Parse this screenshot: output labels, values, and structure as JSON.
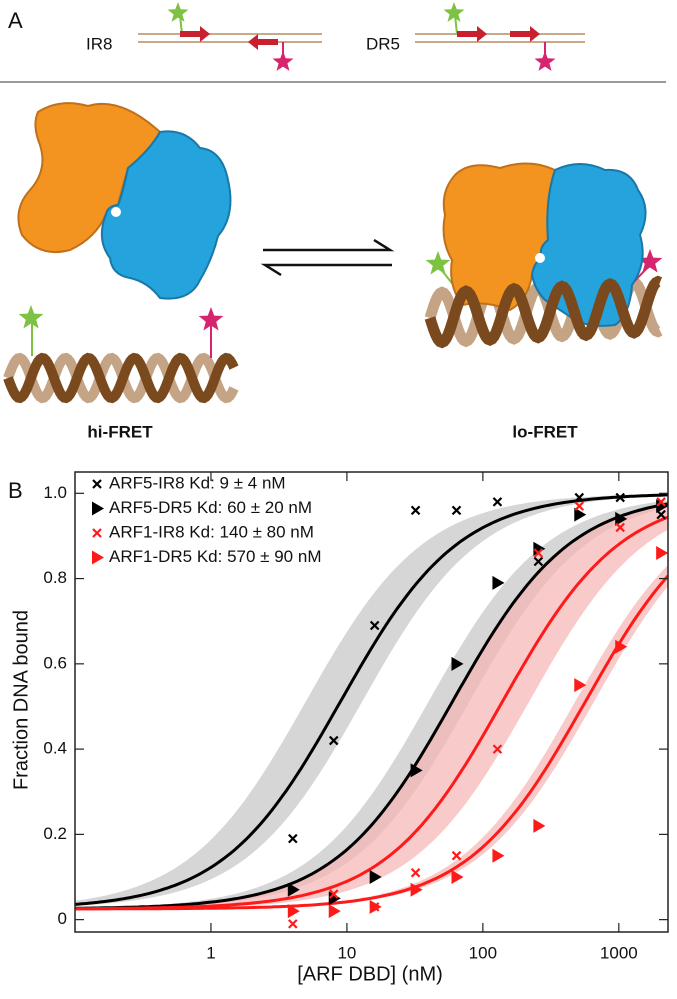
{
  "panel_a": {
    "label": "A",
    "constructs": [
      "IR8",
      "DR5"
    ],
    "states": [
      "hi-FRET",
      "lo-FRET"
    ]
  },
  "panel_b": {
    "label": "B"
  },
  "chart_data": {
    "type": "scatter",
    "xlabel": "[ARF DBD] (nM)",
    "ylabel": "Fraction DNA bound",
    "x": [
      4,
      8,
      16,
      32,
      64,
      128,
      256,
      512,
      1024,
      2048
    ],
    "xscale": "log",
    "xlim": [
      0.1,
      2300
    ],
    "xticks": [
      1,
      10,
      100,
      1000
    ],
    "ylim": [
      -0.029,
      1.05
    ],
    "yticks": [
      0,
      0.2,
      0.4,
      0.6,
      0.8,
      {
        "value": 1,
        "label": "1.0"
      }
    ],
    "legend": "upper left",
    "series": [
      {
        "name": "ARF5-IR8 Kd: 9 ± 4 nM",
        "color": "#000000",
        "marker": "x",
        "band_color": "#c4c4c4",
        "values": [
          0.19,
          0.42,
          0.69,
          0.96,
          0.96,
          0.98,
          0.84,
          0.99,
          0.99,
          0.95
        ],
        "fit": {
          "kd": 9,
          "kd_error": 4,
          "baseline": 0.025
        }
      },
      {
        "name": "ARF5-DR5 Kd: 60 ± 20 nM",
        "color": "#000000",
        "marker": "triangle",
        "band_color": "#c4c4c4",
        "values": [
          0.07,
          0.05,
          0.1,
          0.35,
          0.6,
          0.79,
          0.87,
          0.95,
          0.94,
          0.97
        ],
        "fit": {
          "kd": 60,
          "kd_error": 20,
          "baseline": 0.025
        }
      },
      {
        "name": "ARF1-IR8 Kd: 140 ± 80 nM",
        "color": "#ff1a1a",
        "marker": "x",
        "band_color": "#f6b3b3",
        "values": [
          -0.01,
          0.06,
          0.03,
          0.11,
          0.15,
          0.4,
          0.86,
          0.97,
          0.92,
          0.98
        ],
        "fit": {
          "kd": 140,
          "kd_error": 80,
          "baseline": 0.025
        }
      },
      {
        "name": "ARF1-DR5 Kd: 570 ± 90 nM",
        "color": "#ff1a1a",
        "marker": "triangle",
        "band_color": "#f6b3b3",
        "values": [
          0.02,
          0.02,
          0.03,
          0.07,
          0.1,
          0.15,
          0.22,
          0.55,
          0.64,
          0.86
        ],
        "fit": {
          "kd": 570,
          "kd_error": 90,
          "baseline": 0.025
        }
      }
    ]
  }
}
